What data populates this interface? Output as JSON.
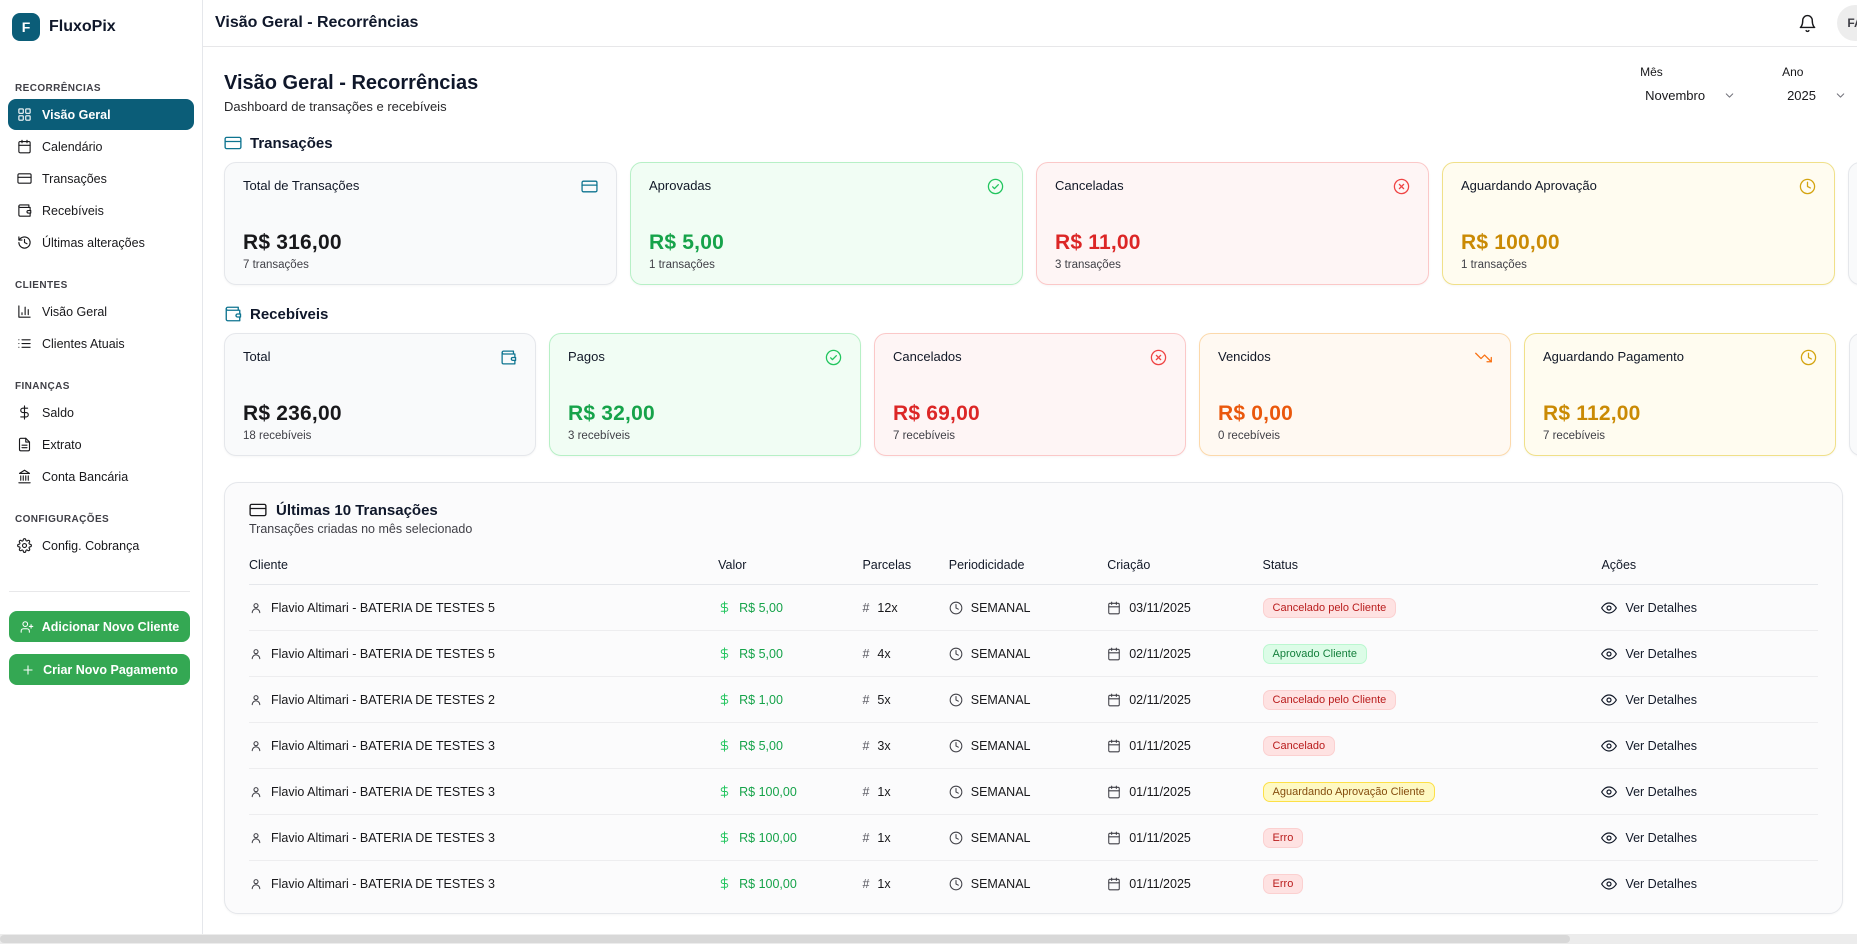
{
  "app": {
    "name": "FluxoPix",
    "logo_letter": "F"
  },
  "topbar": {
    "title": "Visão Geral - Recorrências",
    "avatar_initials": "FA"
  },
  "filters": {
    "month_label": "Mês",
    "month_value": "Novembro",
    "year_label": "Ano",
    "year_value": "2025"
  },
  "page": {
    "title": "Visão Geral - Recorrências",
    "subtitle": "Dashboard de transações e recebíveis"
  },
  "sidebar": {
    "sections": [
      {
        "label": "RECORRÊNCIAS",
        "items": [
          {
            "label": "Visão Geral",
            "icon": "grid-icon",
            "active": true
          },
          {
            "label": "Calendário",
            "icon": "calendar-icon",
            "active": false
          },
          {
            "label": "Transações",
            "icon": "credit-card-icon",
            "active": false
          },
          {
            "label": "Recebíveis",
            "icon": "wallet-icon",
            "active": false
          },
          {
            "label": "Últimas alterações",
            "icon": "history-icon",
            "active": false
          }
        ]
      },
      {
        "label": "CLIENTES",
        "items": [
          {
            "label": "Visão Geral",
            "icon": "bar-chart-icon",
            "active": false
          },
          {
            "label": "Clientes Atuais",
            "icon": "list-icon",
            "active": false
          }
        ]
      },
      {
        "label": "FINANÇAS",
        "items": [
          {
            "label": "Saldo",
            "icon": "dollar-icon",
            "active": false
          },
          {
            "label": "Extrato",
            "icon": "document-icon",
            "active": false
          },
          {
            "label": "Conta Bancária",
            "icon": "bank-icon",
            "active": false
          }
        ]
      },
      {
        "label": "CONFIGURAÇÕES",
        "items": [
          {
            "label": "Config. Cobrança",
            "icon": "gear-icon",
            "active": false
          }
        ]
      }
    ],
    "buttons": [
      {
        "label": "Adicionar Novo Cliente",
        "icon": "user-plus-icon"
      },
      {
        "label": "Criar Novo Pagamento",
        "icon": "plus-icon"
      }
    ]
  },
  "transacoes": {
    "title": "Transações",
    "cards": [
      {
        "title": "Total de Transações",
        "icon": "credit-card-icon",
        "value": "R$ 316,00",
        "caption": "7 transações",
        "tone": "neutral"
      },
      {
        "title": "Aprovadas",
        "icon": "check-circle-icon",
        "value": "R$ 5,00",
        "caption": "1 transações",
        "tone": "green"
      },
      {
        "title": "Canceladas",
        "icon": "x-circle-icon",
        "value": "R$ 11,00",
        "caption": "3 transações",
        "tone": "red"
      },
      {
        "title": "Aguardando Aprovação",
        "icon": "clock-icon",
        "value": "R$ 100,00",
        "caption": "1 transações",
        "tone": "amber"
      }
    ]
  },
  "recebiveis": {
    "title": "Recebíveis",
    "cards": [
      {
        "title": "Total",
        "icon": "wallet-icon",
        "value": "R$ 236,00",
        "caption": "18 recebíveis",
        "tone": "neutral"
      },
      {
        "title": "Pagos",
        "icon": "check-circle-icon",
        "value": "R$ 32,00",
        "caption": "3 recebíveis",
        "tone": "green"
      },
      {
        "title": "Cancelados",
        "icon": "x-circle-icon",
        "value": "R$ 69,00",
        "caption": "7 recebíveis",
        "tone": "red"
      },
      {
        "title": "Vencidos",
        "icon": "trending-down-icon",
        "value": "R$ 0,00",
        "caption": "0 recebíveis",
        "tone": "orange"
      },
      {
        "title": "Aguardando Pagamento",
        "icon": "clock-icon",
        "value": "R$ 112,00",
        "caption": "7 recebíveis",
        "tone": "amber"
      }
    ]
  },
  "table": {
    "title": "Últimas 10 Transações",
    "subtitle": "Transações criadas no mês selecionado",
    "columns": [
      "Cliente",
      "Valor",
      "Parcelas",
      "Periodicidade",
      "Criação",
      "Status",
      "Ações"
    ],
    "action_label": "Ver Detalhes",
    "rows": [
      {
        "cliente": "Flavio Altimari - BATERIA DE TESTES 5",
        "valor": "R$ 5,00",
        "parcelas": "12x",
        "periodicidade": "SEMANAL",
        "criacao": "03/11/2025",
        "status": "Cancelado pelo Cliente",
        "status_tone": "red"
      },
      {
        "cliente": "Flavio Altimari - BATERIA DE TESTES 5",
        "valor": "R$ 5,00",
        "parcelas": "4x",
        "periodicidade": "SEMANAL",
        "criacao": "02/11/2025",
        "status": "Aprovado Cliente",
        "status_tone": "green"
      },
      {
        "cliente": "Flavio Altimari - BATERIA DE TESTES 2",
        "valor": "R$ 1,00",
        "parcelas": "5x",
        "periodicidade": "SEMANAL",
        "criacao": "02/11/2025",
        "status": "Cancelado pelo Cliente",
        "status_tone": "red"
      },
      {
        "cliente": "Flavio Altimari - BATERIA DE TESTES 3",
        "valor": "R$ 5,00",
        "parcelas": "3x",
        "periodicidade": "SEMANAL",
        "criacao": "01/11/2025",
        "status": "Cancelado",
        "status_tone": "red"
      },
      {
        "cliente": "Flavio Altimari - BATERIA DE TESTES 3",
        "valor": "R$ 100,00",
        "parcelas": "1x",
        "periodicidade": "SEMANAL",
        "criacao": "01/11/2025",
        "status": "Aguardando Aprovação Cliente",
        "status_tone": "yellow"
      },
      {
        "cliente": "Flavio Altimari - BATERIA DE TESTES 3",
        "valor": "R$ 100,00",
        "parcelas": "1x",
        "periodicidade": "SEMANAL",
        "criacao": "01/11/2025",
        "status": "Erro",
        "status_tone": "red"
      },
      {
        "cliente": "Flavio Altimari - BATERIA DE TESTES 3",
        "valor": "R$ 100,00",
        "parcelas": "1x",
        "periodicidade": "SEMANAL",
        "criacao": "01/11/2025",
        "status": "Erro",
        "status_tone": "red"
      }
    ]
  },
  "colors": {
    "brand_teal": "#0b5d78",
    "button_green": "#34a853",
    "positive": "#16a34a",
    "negative": "#dc2626",
    "warning_amber": "#ca8a04",
    "overdue_orange": "#ea580c"
  }
}
